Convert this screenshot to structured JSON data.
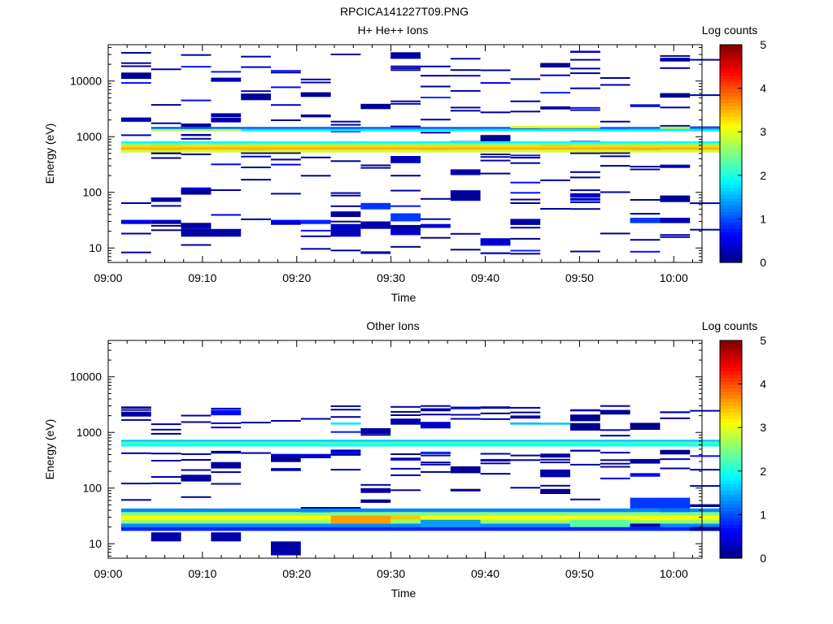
{
  "figure_title": "RPCICA141227T09.PNG",
  "chart_data": [
    {
      "type": "heatmap",
      "title": "H+ He++ Ions",
      "xlabel": "Time",
      "ylabel": "Energy (eV)",
      "yscale": "log",
      "xlim": [
        "09:00",
        "10:03"
      ],
      "ylim": [
        5.5,
        45000
      ],
      "xticks": [
        "09:00",
        "09:10",
        "09:20",
        "09:30",
        "09:40",
        "09:50",
        "10:00"
      ],
      "yticks": [
        10,
        100,
        1000,
        10000
      ],
      "ytick_labels": [
        "10",
        "100",
        "1000",
        "10000"
      ],
      "colorbar": {
        "label": "Log counts",
        "min": 0,
        "max": 5,
        "ticks": [
          "0",
          "1",
          "2",
          "3",
          "4",
          "5"
        ]
      },
      "time_bins": [
        "09:01",
        "09:04",
        "09:07",
        "09:10",
        "09:13",
        "09:17",
        "09:20",
        "09:23",
        "09:26",
        "09:29",
        "09:32",
        "09:36",
        "09:39",
        "09:42",
        "09:45",
        "09:48",
        "09:51",
        "09:55",
        "09:58",
        "10:01"
      ],
      "cells": [
        {
          "t": [
            0,
            20
          ],
          "e": [
            520,
            580
          ],
          "v": 2.9
        },
        {
          "t": [
            0,
            20
          ],
          "e": [
            580,
            640
          ],
          "v": 3.5
        },
        {
          "t": [
            0,
            20
          ],
          "e": [
            640,
            700
          ],
          "v": 3.3
        },
        {
          "t": [
            0,
            20
          ],
          "e": [
            700,
            760
          ],
          "v": 2.6
        },
        {
          "t": [
            0,
            20
          ],
          "e": [
            760,
            830
          ],
          "v": 1.9
        },
        {
          "t": [
            1,
            4
          ],
          "e": [
            1250,
            1380
          ],
          "v": 2.7
        },
        {
          "t": [
            4,
            20
          ],
          "e": [
            1250,
            1380
          ],
          "v": 1.8
        },
        {
          "t": [
            1,
            20
          ],
          "e": [
            1380,
            1500
          ],
          "v": 1.1
        },
        {
          "t": [
            13,
            16
          ],
          "e": [
            1420,
            1560
          ],
          "v": 3.0
        },
        {
          "t": [
            18,
            19
          ],
          "e": [
            1380,
            1520
          ],
          "v": 2.7
        },
        {
          "t": [
            0,
            1
          ],
          "e": [
            27,
            32
          ],
          "v": 0.5
        },
        {
          "t": [
            1,
            2
          ],
          "e": [
            27,
            32
          ],
          "v": 0.3
        },
        {
          "t": [
            2,
            4
          ],
          "e": [
            16,
            22
          ],
          "v": 0.2
        },
        {
          "t": [
            2,
            3
          ],
          "e": [
            22,
            27
          ],
          "v": 0.2
        },
        {
          "t": [
            5,
            6
          ],
          "e": [
            27,
            32
          ],
          "v": 0.5
        },
        {
          "t": [
            6,
            7
          ],
          "e": [
            27,
            32
          ],
          "v": 0.8
        },
        {
          "t": [
            7,
            8
          ],
          "e": [
            16,
            27
          ],
          "v": 0.3
        },
        {
          "t": [
            8,
            9
          ],
          "e": [
            22,
            30
          ],
          "v": 0.2
        },
        {
          "t": [
            9,
            10
          ],
          "e": [
            30,
            42
          ],
          "v": 0.9
        },
        {
          "t": [
            9,
            10
          ],
          "e": [
            17,
            21
          ],
          "v": 0.4
        },
        {
          "t": [
            10,
            11
          ],
          "e": [
            23,
            27
          ],
          "v": 0.4
        },
        {
          "t": [
            12,
            13
          ],
          "e": [
            11,
            15
          ],
          "v": 0.4
        },
        {
          "t": [
            17,
            18
          ],
          "e": [
            28,
            35
          ],
          "v": 0.9
        },
        {
          "t": [
            18,
            19
          ],
          "e": [
            28,
            35
          ],
          "v": 0.3
        }
      ]
    },
    {
      "type": "heatmap",
      "title": "Other Ions",
      "xlabel": "Time",
      "ylabel": "Energy (eV)",
      "yscale": "log",
      "xlim": [
        "09:00",
        "10:03"
      ],
      "ylim": [
        5.5,
        45000
      ],
      "xticks": [
        "09:00",
        "09:10",
        "09:20",
        "09:30",
        "09:40",
        "09:50",
        "10:00"
      ],
      "yticks": [
        10,
        100,
        1000,
        10000
      ],
      "ytick_labels": [
        "10",
        "100",
        "1000",
        "10000"
      ],
      "colorbar": {
        "label": "Log counts",
        "min": 0,
        "max": 5,
        "ticks": [
          "0",
          "1",
          "2",
          "3",
          "4",
          "5"
        ]
      },
      "time_bins": [
        "09:01",
        "09:04",
        "09:07",
        "09:10",
        "09:13",
        "09:17",
        "09:20",
        "09:23",
        "09:26",
        "09:29",
        "09:32",
        "09:36",
        "09:39",
        "09:42",
        "09:45",
        "09:48",
        "09:51",
        "09:55",
        "09:58",
        "10:01"
      ],
      "cells": [
        {
          "t": [
            0,
            20
          ],
          "e": [
            560,
            620
          ],
          "v": 1.9
        },
        {
          "t": [
            0,
            20
          ],
          "e": [
            620,
            680
          ],
          "v": 2.2
        },
        {
          "t": [
            0,
            20
          ],
          "e": [
            680,
            740
          ],
          "v": 1.6
        },
        {
          "t": [
            0,
            20
          ],
          "e": [
            17,
            20
          ],
          "v": 0.8
        },
        {
          "t": [
            0,
            20
          ],
          "e": [
            20,
            23
          ],
          "v": 1.3
        },
        {
          "t": [
            0,
            20
          ],
          "e": [
            23,
            27
          ],
          "v": 2.6
        },
        {
          "t": [
            0,
            20
          ],
          "e": [
            27,
            32
          ],
          "v": 3.1
        },
        {
          "t": [
            0,
            20
          ],
          "e": [
            32,
            37
          ],
          "v": 2.5
        },
        {
          "t": [
            0,
            20
          ],
          "e": [
            37,
            43
          ],
          "v": 1.3
        },
        {
          "t": [
            7,
            9
          ],
          "e": [
            23,
            32
          ],
          "v": 3.6
        },
        {
          "t": [
            9,
            10
          ],
          "e": [
            27,
            32
          ],
          "v": 3.4
        },
        {
          "t": [
            10,
            12
          ],
          "e": [
            20,
            27
          ],
          "v": 1.4
        },
        {
          "t": [
            15,
            17
          ],
          "e": [
            20,
            27
          ],
          "v": 2.3
        },
        {
          "t": [
            17,
            18
          ],
          "e": [
            20,
            23
          ],
          "v": 0.3
        },
        {
          "t": [
            19,
            20
          ],
          "e": [
            17,
            20
          ],
          "v": 0.2
        },
        {
          "t": [
            17,
            19
          ],
          "e": [
            43,
            67
          ],
          "v": 0.9
        },
        {
          "t": [
            18,
            19
          ],
          "e": [
            37,
            43
          ],
          "v": 1.2
        },
        {
          "t": [
            13,
            15
          ],
          "e": [
            1380,
            1500
          ],
          "v": 1.6
        },
        {
          "t": [
            7,
            8
          ],
          "e": [
            1380,
            1500
          ],
          "v": 1.8
        },
        {
          "t": [
            1,
            2
          ],
          "e": [
            11,
            16
          ],
          "v": 0.2
        },
        {
          "t": [
            3,
            4
          ],
          "e": [
            11,
            16
          ],
          "v": 0.2
        },
        {
          "t": [
            5,
            6
          ],
          "e": [
            6.2,
            11
          ],
          "v": 0.2
        }
      ]
    }
  ]
}
